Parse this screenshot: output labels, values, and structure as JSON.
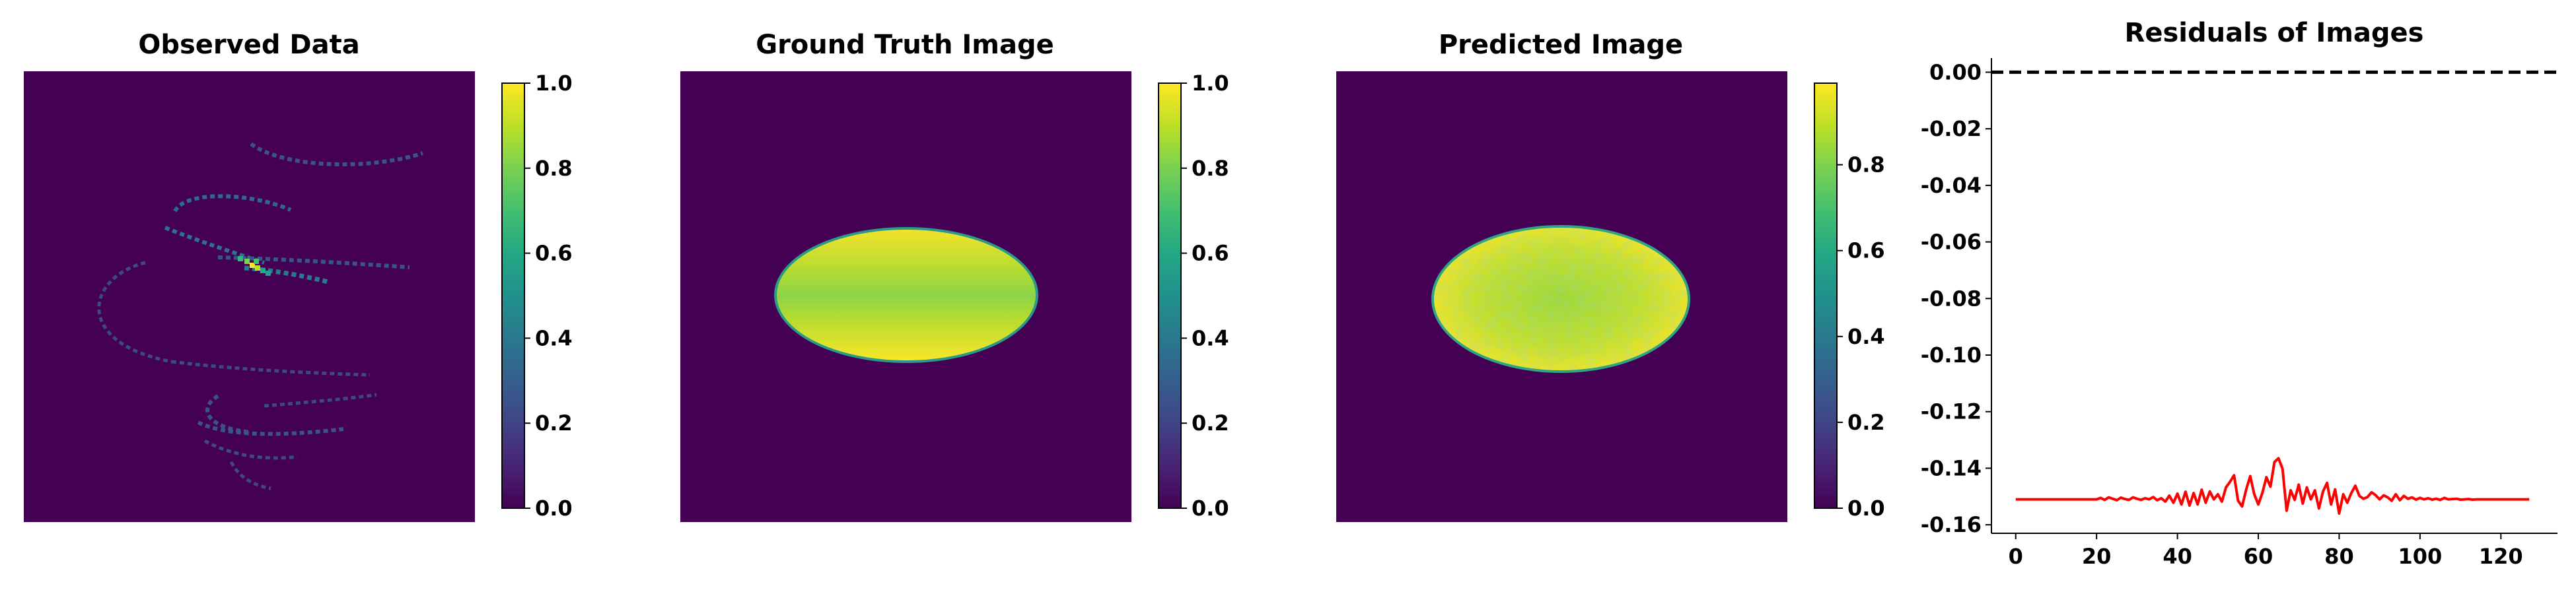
{
  "chart_data": [
    {
      "type": "heatmap",
      "title": "Observed Data",
      "colormap": "viridis",
      "colorbar": {
        "range": [
          0.0,
          1.0
        ],
        "ticks": [
          "0.0",
          "0.2",
          "0.4",
          "0.6",
          "0.8",
          "1.0"
        ]
      },
      "content": "sparse helical streak pattern on dark background"
    },
    {
      "type": "heatmap",
      "title": "Ground Truth Image",
      "colormap": "viridis",
      "colorbar": {
        "range": [
          0.0,
          1.0
        ],
        "ticks": [
          "0.0",
          "0.2",
          "0.4",
          "0.6",
          "0.8",
          "1.0"
        ]
      },
      "content": "filled ellipse with bright yellow edges and greener horizontal band"
    },
    {
      "type": "heatmap",
      "title": "Predicted Image",
      "colormap": "viridis",
      "colorbar": {
        "range": [
          0.0,
          0.99
        ],
        "ticks": [
          "0.0",
          "0.2",
          "0.4",
          "0.6",
          "0.8"
        ]
      },
      "content": "noisy reconstructed ellipse"
    },
    {
      "type": "line",
      "title": "Residuals of Images",
      "xlim": [
        -6,
        134
      ],
      "ylim": [
        -0.163,
        0.005
      ],
      "xticks": [
        0,
        20,
        40,
        60,
        80,
        100,
        120
      ],
      "yticks": [
        "0.00",
        "-0.02",
        "-0.04",
        "-0.06",
        "-0.08",
        "-0.10",
        "-0.12",
        "-0.14",
        "-0.16"
      ],
      "reference_line": {
        "y": 0.0,
        "style": "dashed",
        "color": "#000000"
      },
      "series": [
        {
          "color": "#ff0000",
          "x": [
            0,
            1,
            2,
            3,
            4,
            5,
            6,
            7,
            8,
            9,
            10,
            11,
            12,
            13,
            14,
            15,
            16,
            17,
            18,
            19,
            20,
            21,
            22,
            23,
            24,
            25,
            26,
            27,
            28,
            29,
            30,
            31,
            32,
            33,
            34,
            35,
            36,
            37,
            38,
            39,
            40,
            41,
            42,
            43,
            44,
            45,
            46,
            47,
            48,
            49,
            50,
            51,
            52,
            53,
            54,
            55,
            56,
            57,
            58,
            59,
            60,
            61,
            62,
            63,
            64,
            65,
            66,
            67,
            68,
            69,
            70,
            71,
            72,
            73,
            74,
            75,
            76,
            77,
            78,
            79,
            80,
            81,
            82,
            83,
            84,
            85,
            86,
            87,
            88,
            89,
            90,
            91,
            92,
            93,
            94,
            95,
            96,
            97,
            98,
            99,
            100,
            101,
            102,
            103,
            104,
            105,
            106,
            107,
            108,
            109,
            110,
            111,
            112,
            113,
            114,
            115,
            116,
            117,
            118,
            119,
            120,
            121,
            122,
            123,
            124,
            125,
            126,
            127
          ],
          "values": [
            -0.151,
            -0.151,
            -0.151,
            -0.151,
            -0.151,
            -0.151,
            -0.151,
            -0.151,
            -0.151,
            -0.151,
            -0.151,
            -0.151,
            -0.151,
            -0.151,
            -0.151,
            -0.151,
            -0.151,
            -0.151,
            -0.151,
            -0.151,
            -0.151,
            -0.1505,
            -0.1512,
            -0.1503,
            -0.1508,
            -0.1513,
            -0.1504,
            -0.1509,
            -0.1512,
            -0.1503,
            -0.1508,
            -0.1512,
            -0.1506,
            -0.151,
            -0.1502,
            -0.1513,
            -0.1506,
            -0.1518,
            -0.1497,
            -0.1522,
            -0.149,
            -0.1528,
            -0.1483,
            -0.1532,
            -0.1488,
            -0.1528,
            -0.1476,
            -0.1522,
            -0.1482,
            -0.151,
            -0.1492,
            -0.1518,
            -0.1468,
            -0.1448,
            -0.1425,
            -0.1515,
            -0.1535,
            -0.1475,
            -0.1428,
            -0.1492,
            -0.1528,
            -0.1488,
            -0.1432,
            -0.1465,
            -0.1378,
            -0.1365,
            -0.1402,
            -0.155,
            -0.1478,
            -0.1512,
            -0.1458,
            -0.1525,
            -0.1468,
            -0.151,
            -0.1478,
            -0.1542,
            -0.1482,
            -0.1452,
            -0.1528,
            -0.1475,
            -0.156,
            -0.1492,
            -0.1522,
            -0.1488,
            -0.1462,
            -0.1498,
            -0.1508,
            -0.1502,
            -0.1485,
            -0.1495,
            -0.151,
            -0.1496,
            -0.1503,
            -0.1515,
            -0.1492,
            -0.1513,
            -0.1498,
            -0.1508,
            -0.1503,
            -0.1511,
            -0.1505,
            -0.151,
            -0.1506,
            -0.1511,
            -0.1508,
            -0.1512,
            -0.1505,
            -0.151,
            -0.1509,
            -0.1508,
            -0.1511,
            -0.151,
            -0.1509,
            -0.1511,
            -0.151,
            -0.151,
            -0.151,
            -0.151,
            -0.151,
            -0.151,
            -0.151,
            -0.151,
            -0.151,
            -0.151,
            -0.151,
            -0.151,
            -0.151,
            -0.151
          ]
        }
      ]
    }
  ]
}
